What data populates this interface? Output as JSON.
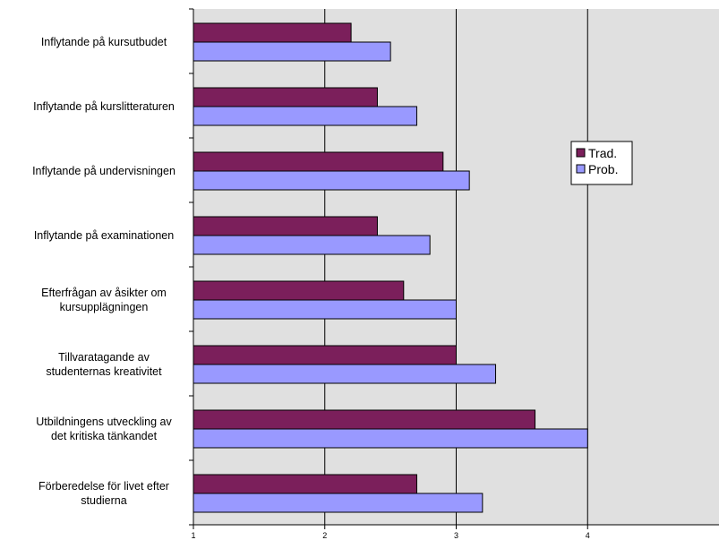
{
  "chart_data": {
    "type": "bar",
    "orientation": "horizontal",
    "categories": [
      [
        "Inflytande på kursutbudet"
      ],
      [
        "Inflytande på kurslitteraturen"
      ],
      [
        "Inflytande på undervisningen"
      ],
      [
        "Inflytande på examinationen"
      ],
      [
        "Efterfrågan av åsikter om",
        "kursupplägningen"
      ],
      [
        "Tillvaratagande av",
        "studenternas kreativitet"
      ],
      [
        "Utbildningens utveckling av",
        "det kritiska tänkandet"
      ],
      [
        "Förberedelse för livet efter",
        "studierna"
      ]
    ],
    "series": [
      {
        "name": "Trad.",
        "color": "#7b1f5b",
        "values": [
          2.2,
          2.4,
          2.9,
          2.4,
          2.6,
          3.0,
          3.6,
          2.7
        ]
      },
      {
        "name": "Prob.",
        "color": "#9999ff",
        "values": [
          2.5,
          2.7,
          3.1,
          2.8,
          3.0,
          3.3,
          4.0,
          3.2
        ]
      }
    ],
    "xlim": [
      1,
      5
    ],
    "xticks": [
      1,
      2,
      3,
      4
    ],
    "xtick_labels": [
      "1",
      "2",
      "3",
      "4"
    ],
    "gridlines_at": [
      2,
      3,
      4
    ],
    "grid": true,
    "plot_background": "#e0e0e0",
    "legend_position": "right"
  }
}
